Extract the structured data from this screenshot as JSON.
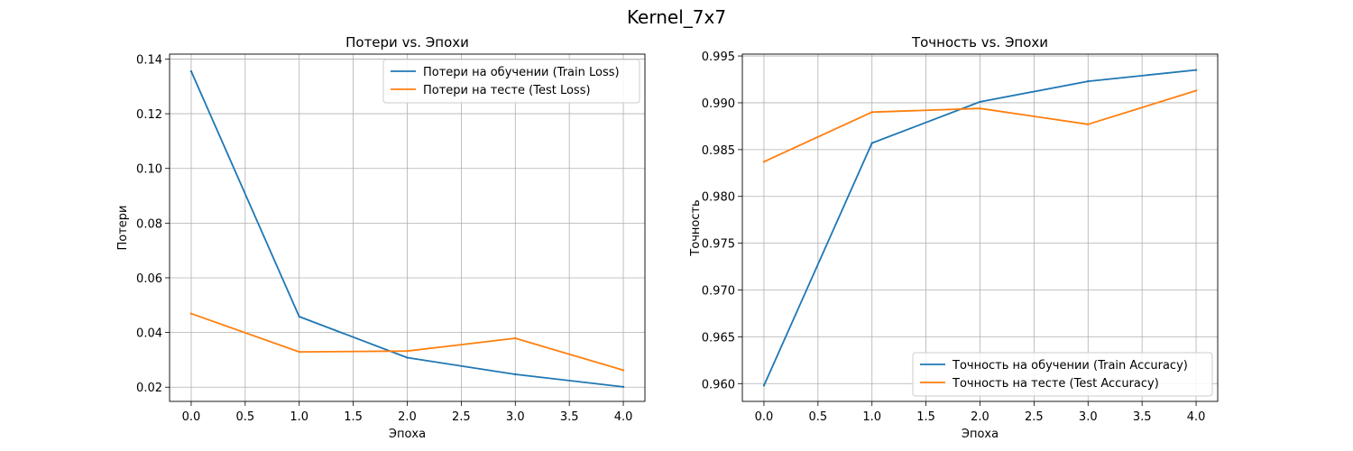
{
  "figure": {
    "suptitle": "Kernel_7x7"
  },
  "colors": {
    "train": "#1f77b4",
    "test": "#ff7f0e",
    "grid": "#b0b0b0",
    "axis": "#000000"
  },
  "chart_data": [
    {
      "type": "line",
      "title": "Потери vs. Эпохи",
      "xlabel": "Эпоха",
      "ylabel": "Потери",
      "xlim": [
        -0.2,
        4.2
      ],
      "ylim": [
        0.0148,
        0.1418
      ],
      "xticks": [
        "0.0",
        "0.5",
        "1.0",
        "1.5",
        "2.0",
        "2.5",
        "3.0",
        "3.5",
        "4.0"
      ],
      "yticks": [
        "0.02",
        "0.04",
        "0.06",
        "0.08",
        "0.10",
        "0.12",
        "0.14"
      ],
      "grid": true,
      "legend_position": "upper right",
      "x": [
        0,
        1,
        2,
        3,
        4
      ],
      "series": [
        {
          "name": "Потери на обучении (Train Loss)",
          "values": [
            0.1355,
            0.0458,
            0.0308,
            0.0247,
            0.0201
          ]
        },
        {
          "name": "Потери на тесте (Test Loss)",
          "values": [
            0.0469,
            0.0329,
            0.0332,
            0.0379,
            0.0262
          ]
        }
      ]
    },
    {
      "type": "line",
      "title": "Точность vs. Эпохи",
      "xlabel": "Эпоха",
      "ylabel": "Точность",
      "xlim": [
        -0.2,
        4.2
      ],
      "ylim": [
        0.9581,
        0.9952
      ],
      "xticks": [
        "0.0",
        "0.5",
        "1.0",
        "1.5",
        "2.0",
        "2.5",
        "3.0",
        "3.5",
        "4.0"
      ],
      "yticks": [
        "0.960",
        "0.965",
        "0.970",
        "0.975",
        "0.980",
        "0.985",
        "0.990",
        "0.995"
      ],
      "grid": true,
      "legend_position": "lower right",
      "x": [
        0,
        1,
        2,
        3,
        4
      ],
      "series": [
        {
          "name": "Точность на обучении (Train Accuracy)",
          "values": [
            0.9598,
            0.9857,
            0.9901,
            0.9923,
            0.9935
          ]
        },
        {
          "name": "Точность на тесте (Test Accuracy)",
          "values": [
            0.9837,
            0.989,
            0.9894,
            0.9877,
            0.9913
          ]
        }
      ]
    }
  ]
}
